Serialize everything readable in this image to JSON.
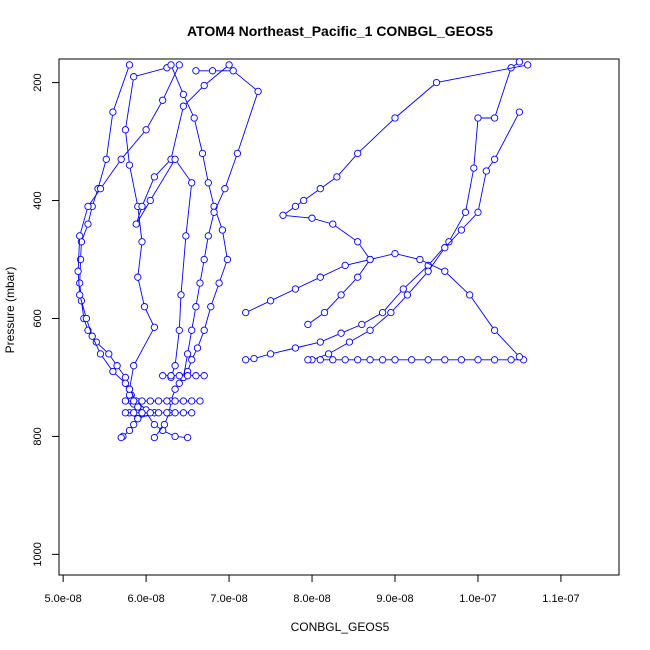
{
  "chart_data": {
    "type": "line",
    "title": "ATOM4 Northeast_Pacific_1 CONBGL_GEOS5",
    "xlabel": "CONBGL_GEOS5",
    "ylabel": "Pressure (mbar)",
    "xlim": [
      4.95e-08,
      1.17e-07
    ],
    "ylim": [
      1035,
      160
    ],
    "y_reversed": true,
    "grid": false,
    "legend": "none",
    "line_color": "#0000ff",
    "marker": "open-circle",
    "x_ticks": [
      5e-08,
      6e-08,
      7e-08,
      8e-08,
      9e-08,
      1e-07,
      1.1e-07
    ],
    "x_tick_labels": [
      "5.0e-08",
      "6.0e-08",
      "7.0e-08",
      "8.0e-08",
      "9.0e-08",
      "1.0e-07",
      "1.1e-07"
    ],
    "y_ticks": [
      200,
      400,
      600,
      800,
      1000
    ],
    "y_tick_labels": [
      "200",
      "400",
      "600",
      "800",
      "1000"
    ],
    "series": [
      {
        "x": [
          5.8e-08,
          5.6e-08,
          5.52e-08,
          5.42e-08,
          5.35e-08,
          5.3e-08,
          5.22e-08,
          5.21e-08,
          5.2e-08,
          5.22e-08,
          5.25e-08,
          5.3e-08,
          5.4e-08,
          5.55e-08,
          5.65e-08,
          5.75e-08,
          5.8e-08,
          5.82e-08,
          5.85e-08,
          5.9e-08,
          5.95e-08,
          6e-08,
          5.9e-08,
          5.85e-08,
          5.8e-08,
          5.72e-08,
          5.7e-08
        ],
        "y": [
          170,
          250,
          330,
          380,
          410,
          440,
          470,
          500,
          540,
          570,
          600,
          620,
          640,
          660,
          680,
          700,
          720,
          730,
          740,
          750,
          755,
          760,
          770,
          780,
          790,
          800,
          802
        ]
      },
      {
        "x": [
          6.4e-08,
          6.2e-08,
          6e-08,
          5.7e-08,
          5.45e-08,
          5.3e-08,
          5.2e-08,
          5.18e-08,
          5.2e-08,
          5.28e-08,
          5.35e-08,
          5.45e-08,
          5.6e-08,
          5.75e-08,
          5.8e-08,
          5.82e-08,
          5.85e-08,
          5.9e-08,
          6e-08,
          6.1e-08,
          6.2e-08,
          6.35e-08,
          6.5e-08
        ],
        "y": [
          170,
          230,
          280,
          330,
          380,
          410,
          460,
          520,
          560,
          600,
          630,
          660,
          690,
          710,
          730,
          740,
          745,
          750,
          760,
          780,
          790,
          800,
          802
        ]
      },
      {
        "x": [
          6.25e-08,
          5.85e-08,
          5.75e-08,
          5.8e-08,
          5.9e-08,
          5.95e-08,
          5.9e-08,
          5.98e-08,
          6.1e-08,
          5.85e-08,
          5.8e-08,
          5.88e-08,
          6e-08,
          6.1e-08,
          5.9e-08,
          5.8e-08
        ],
        "y": [
          175,
          190,
          280,
          340,
          410,
          470,
          530,
          580,
          615,
          680,
          720,
          740,
          755,
          760,
          770,
          760
        ]
      },
      {
        "x": [
          6.3e-08,
          6.45e-08,
          6.58e-08,
          6.68e-08,
          6.75e-08,
          6.82e-08,
          6.92e-08,
          6.98e-08,
          6.88e-08,
          6.78e-08,
          6.7e-08,
          6.62e-08,
          6.55e-08,
          6.5e-08,
          6.45e-08,
          6.4e-08,
          6.35e-08,
          6.3e-08,
          6.28e-08,
          6.22e-08,
          6.1e-08
        ],
        "y": [
          170,
          220,
          260,
          320,
          370,
          410,
          450,
          500,
          540,
          580,
          620,
          650,
          670,
          690,
          700,
          710,
          720,
          740,
          760,
          780,
          802
        ]
      },
      {
        "x": [
          7e-08,
          6.7e-08,
          6.45e-08,
          6.3e-08,
          6.1e-08,
          5.95e-08,
          5.88e-08,
          6.05e-08,
          6.35e-08,
          6.55e-08,
          6.48e-08,
          6.42e-08,
          6.4e-08,
          6.35e-08,
          6.3e-08
        ],
        "y": [
          170,
          205,
          240,
          330,
          360,
          410,
          440,
          400,
          330,
          370,
          460,
          560,
          620,
          680,
          700
        ]
      },
      {
        "x": [
          6.6e-08,
          6.8e-08,
          7.05e-08,
          7.35e-08,
          7.1e-08,
          6.95e-08,
          6.82e-08,
          6.75e-08,
          6.7e-08,
          6.65e-08,
          6.6e-08,
          6.55e-08,
          6.5e-08,
          6.45e-08
        ],
        "y": [
          180,
          180,
          180,
          215,
          320,
          380,
          420,
          460,
          500,
          540,
          580,
          620,
          660,
          700
        ]
      },
      {
        "x": [
          1.05e-07,
          1.04e-07,
          1.02e-07,
          1e-07,
          9.95e-08,
          9.85e-08,
          9.65e-08,
          9.4e-08,
          9.1e-08,
          8.85e-08,
          8.6e-08,
          8.35e-08,
          8.1e-08,
          7.8e-08,
          7.5e-08,
          7.3e-08,
          7.2e-08
        ],
        "y": [
          165,
          175,
          260,
          260,
          345,
          420,
          470,
          510,
          550,
          590,
          610,
          625,
          640,
          650,
          660,
          668,
          670
        ]
      },
      {
        "x": [
          1.06e-07,
          9.5e-08,
          9e-08,
          8.55e-08,
          8.3e-08,
          8.1e-08,
          7.9e-08,
          7.8e-08,
          7.65e-08,
          8e-08,
          8.25e-08,
          8.55e-08,
          8.7e-08,
          8.55e-08,
          8.35e-08,
          8.15e-08,
          7.95e-08
        ],
        "y": [
          170,
          200,
          260,
          320,
          360,
          380,
          400,
          410,
          425,
          430,
          440,
          470,
          500,
          530,
          560,
          590,
          610
        ]
      },
      {
        "x": [
          1.05e-07,
          1.02e-07,
          1.01e-07,
          1e-07,
          9.8e-08,
          9.6e-08,
          9.4e-08,
          9.15e-08,
          8.95e-08,
          8.7e-08,
          8.45e-08,
          8.2e-08,
          8e-08,
          7.95e-08
        ],
        "y": [
          250,
          330,
          350,
          420,
          450,
          480,
          520,
          560,
          590,
          620,
          640,
          660,
          670,
          670
        ]
      },
      {
        "x": [
          8.1e-08,
          8.25e-08,
          8.4e-08,
          8.55e-08,
          8.7e-08,
          8.85e-08,
          9e-08,
          9.2e-08,
          9.4e-08,
          9.6e-08,
          9.8e-08,
          1e-07,
          1.02e-07,
          1.04e-07,
          1.055e-07
        ],
        "y": [
          670,
          670,
          670,
          670,
          670,
          670,
          670,
          670,
          670,
          670,
          670,
          670,
          670,
          670,
          670
        ]
      },
      {
        "x": [
          7.2e-08,
          7.5e-08,
          7.8e-08,
          8.1e-08,
          8.4e-08,
          8.7e-08,
          9e-08,
          9.3e-08,
          9.6e-08,
          9.9e-08,
          1.02e-07,
          1.05e-07
        ],
        "y": [
          590,
          570,
          550,
          530,
          510,
          500,
          490,
          500,
          520,
          560,
          620,
          665
        ]
      },
      {
        "x": [
          5.75e-08,
          5.85e-08,
          5.95e-08,
          6.05e-08,
          6.15e-08,
          6.25e-08,
          6.35e-08,
          6.45e-08,
          6.55e-08,
          6.65e-08
        ],
        "y": [
          740,
          740,
          740,
          740,
          740,
          740,
          740,
          740,
          740,
          740
        ]
      },
      {
        "x": [
          5.75e-08,
          5.85e-08,
          5.95e-08,
          6.05e-08,
          6.15e-08,
          6.25e-08,
          6.35e-08,
          6.45e-08,
          6.55e-08
        ],
        "y": [
          760,
          760,
          760,
          760,
          760,
          760,
          760,
          760,
          760
        ]
      },
      {
        "x": [
          6.2e-08,
          6.3e-08,
          6.4e-08,
          6.5e-08,
          6.6e-08,
          6.7e-08
        ],
        "y": [
          697,
          697,
          697,
          697,
          697,
          697
        ]
      }
    ]
  }
}
